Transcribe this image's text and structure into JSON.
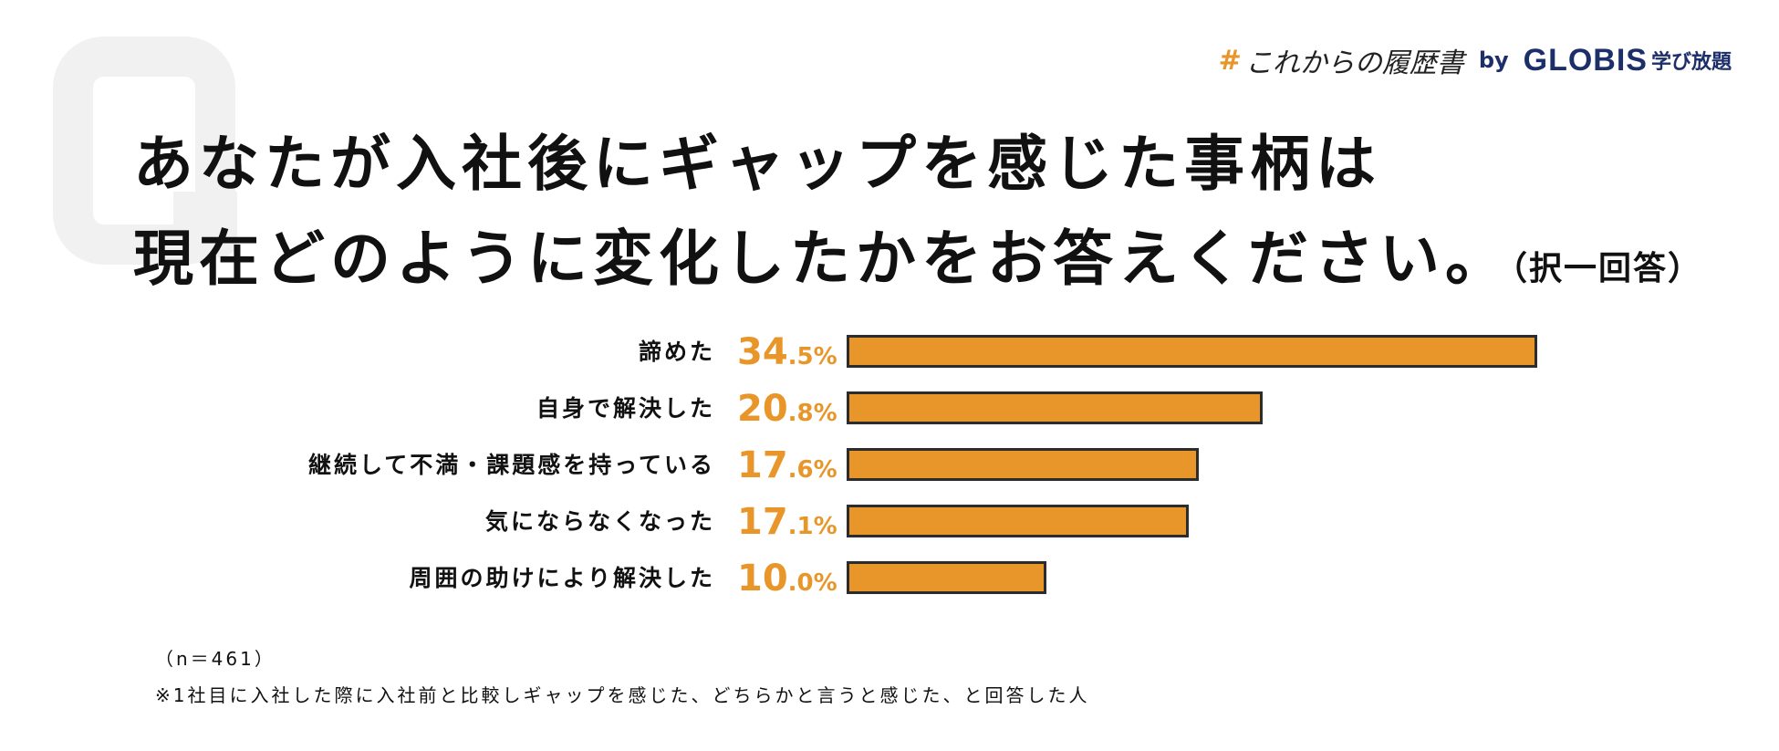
{
  "brand": {
    "hashtag_symbol": "#",
    "hashtag_text": "これからの履歴書",
    "by": "by",
    "globis": "GLOBIS",
    "service": "学び放題"
  },
  "question": {
    "line1": "あなたが入社後にギャップを感じた事柄は",
    "line2": "現在どのように変化したかをお答えください。",
    "note": "（択一回答）"
  },
  "chart_data": {
    "type": "bar",
    "orientation": "horizontal",
    "categories": [
      "諦めた",
      "自身で解決した",
      "継続して不満・課題感を持っている",
      "気にならなくなった",
      "周囲の助けにより解決した"
    ],
    "values": [
      34.5,
      20.8,
      17.6,
      17.1,
      10.0
    ],
    "value_labels": [
      {
        "int": "34",
        "dec": ".5%"
      },
      {
        "int": "20",
        "dec": ".8%"
      },
      {
        "int": "17",
        "dec": ".6%"
      },
      {
        "int": "17",
        "dec": ".1%"
      },
      {
        "int": "10",
        "dec": ".0%"
      }
    ],
    "bar_color": "#e8962a",
    "label_color": "#e8962a"
  },
  "footer": {
    "sample": "（n＝461）",
    "note": "※1社目に入社した際に入社前と比較しギャップを感じた、どちらかと言うと感じた、と回答した人"
  }
}
